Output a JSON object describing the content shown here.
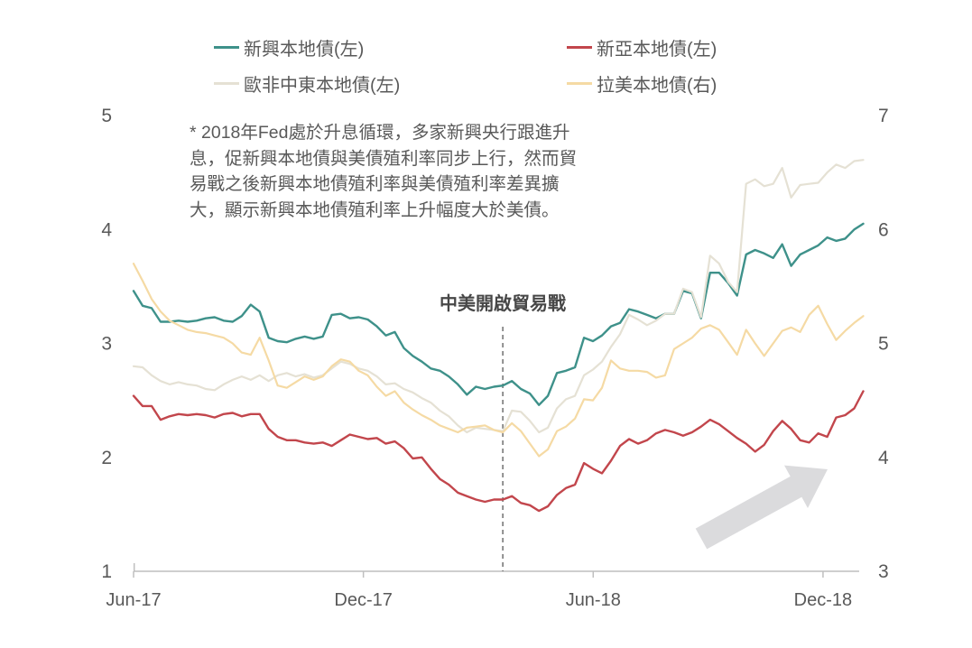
{
  "legend": {
    "items": [
      {
        "label": "新興本地債(左)",
        "color": "#3E918A"
      },
      {
        "label": "新亞本地債(左)",
        "color": "#C2464C"
      },
      {
        "label": "歐非中東本地債(左)",
        "color": "#E5E1D4"
      },
      {
        "label": "拉美本地債(右)",
        "color": "#F5DAA4"
      }
    ]
  },
  "annotation": {
    "lines": [
      "* 2018年Fed處於升息循環，多家新興央行跟進升",
      "息，促新興本地債與美債殖利率同步上行，然而貿",
      "易戰之後新興本地債殖利率與美債殖利率差異擴",
      "大，顯示新興本地債殖利率上升幅度大於美債。"
    ]
  },
  "event_label": "中美開啟貿易戰",
  "chart_data": {
    "type": "line",
    "x_axis": {
      "tick_labels": [
        "Jun-17",
        "Dec-17",
        "Jun-18",
        "Dec-18"
      ],
      "tick_months": [
        0,
        6,
        12,
        18
      ]
    },
    "left_axis": {
      "ticks": [
        1,
        2,
        3,
        4,
        5
      ],
      "range": [
        1,
        5
      ]
    },
    "right_axis": {
      "ticks": [
        3,
        4,
        5,
        6,
        7
      ],
      "range": [
        3,
        7
      ]
    },
    "months_span": 19.05,
    "event_month": 9.64,
    "grid": false,
    "legend_position": "top",
    "series": [
      {
        "name": "新興本地債(左)",
        "axis": "left",
        "color": "#3E918A",
        "values": [
          3.46,
          3.33,
          3.31,
          3.19,
          3.19,
          3.2,
          3.19,
          3.2,
          3.22,
          3.23,
          3.2,
          3.19,
          3.24,
          3.34,
          3.28,
          3.05,
          3.02,
          3.01,
          3.04,
          3.06,
          3.04,
          3.06,
          3.25,
          3.26,
          3.22,
          3.23,
          3.21,
          3.15,
          3.07,
          3.1,
          2.96,
          2.89,
          2.84,
          2.78,
          2.76,
          2.71,
          2.64,
          2.55,
          2.62,
          2.6,
          2.62,
          2.63,
          2.67,
          2.6,
          2.56,
          2.46,
          2.54,
          2.74,
          2.76,
          2.79,
          3.05,
          3.02,
          3.07,
          3.15,
          3.18,
          3.3,
          3.28,
          3.25,
          3.22,
          3.26,
          3.26,
          3.46,
          3.44,
          3.22,
          3.62,
          3.62,
          3.53,
          3.42,
          3.78,
          3.82,
          3.79,
          3.75,
          3.87,
          3.68,
          3.78,
          3.82,
          3.86,
          3.93,
          3.9,
          3.92,
          4.0,
          4.05
        ]
      },
      {
        "name": "新亞本地債(左)",
        "axis": "left",
        "color": "#C2464C",
        "values": [
          2.54,
          2.45,
          2.45,
          2.33,
          2.36,
          2.38,
          2.37,
          2.38,
          2.37,
          2.35,
          2.38,
          2.39,
          2.36,
          2.38,
          2.38,
          2.25,
          2.18,
          2.15,
          2.15,
          2.13,
          2.12,
          2.13,
          2.1,
          2.15,
          2.2,
          2.18,
          2.16,
          2.17,
          2.12,
          2.14,
          2.08,
          1.99,
          2.0,
          1.9,
          1.81,
          1.76,
          1.69,
          1.66,
          1.63,
          1.61,
          1.63,
          1.63,
          1.66,
          1.6,
          1.58,
          1.53,
          1.57,
          1.67,
          1.73,
          1.76,
          1.95,
          1.9,
          1.86,
          1.97,
          2.1,
          2.16,
          2.12,
          2.15,
          2.21,
          2.24,
          2.22,
          2.19,
          2.22,
          2.27,
          2.33,
          2.29,
          2.23,
          2.17,
          2.12,
          2.05,
          2.11,
          2.23,
          2.32,
          2.25,
          2.15,
          2.13,
          2.21,
          2.18,
          2.35,
          2.37,
          2.43,
          2.58
        ]
      },
      {
        "name": "歐非中東本地債(左)",
        "axis": "left",
        "color": "#E5E1D4",
        "values": [
          2.8,
          2.79,
          2.72,
          2.67,
          2.64,
          2.66,
          2.64,
          2.63,
          2.6,
          2.59,
          2.64,
          2.68,
          2.71,
          2.68,
          2.72,
          2.67,
          2.72,
          2.74,
          2.71,
          2.73,
          2.7,
          2.72,
          2.78,
          2.84,
          2.82,
          2.78,
          2.76,
          2.71,
          2.64,
          2.65,
          2.6,
          2.57,
          2.52,
          2.48,
          2.41,
          2.36,
          2.28,
          2.22,
          2.26,
          2.25,
          2.24,
          2.23,
          2.41,
          2.4,
          2.32,
          2.22,
          2.26,
          2.43,
          2.51,
          2.54,
          2.72,
          2.77,
          2.84,
          2.97,
          3.08,
          3.25,
          3.21,
          3.16,
          3.2,
          3.26,
          3.26,
          3.48,
          3.45,
          3.23,
          3.77,
          3.7,
          3.54,
          3.45,
          4.4,
          4.44,
          4.38,
          4.4,
          4.54,
          4.28,
          4.39,
          4.4,
          4.41,
          4.5,
          4.57,
          4.54,
          4.6,
          4.61
        ]
      },
      {
        "name": "拉美本地債(右)",
        "axis": "right",
        "color": "#F5DAA4",
        "values": [
          5.7,
          5.55,
          5.39,
          5.28,
          5.2,
          5.16,
          5.12,
          5.1,
          5.09,
          5.07,
          5.05,
          5.0,
          4.92,
          4.9,
          5.05,
          4.85,
          4.63,
          4.61,
          4.66,
          4.71,
          4.68,
          4.71,
          4.8,
          4.86,
          4.84,
          4.76,
          4.72,
          4.62,
          4.54,
          4.58,
          4.48,
          4.42,
          4.37,
          4.33,
          4.28,
          4.25,
          4.22,
          4.26,
          4.27,
          4.28,
          4.24,
          4.22,
          4.3,
          4.23,
          4.12,
          4.01,
          4.07,
          4.23,
          4.27,
          4.34,
          4.51,
          4.5,
          4.61,
          4.85,
          4.78,
          4.76,
          4.76,
          4.75,
          4.7,
          4.72,
          4.95,
          5.0,
          5.05,
          5.13,
          5.16,
          5.12,
          5.01,
          4.9,
          5.12,
          5.0,
          4.89,
          5.0,
          5.11,
          5.14,
          5.1,
          5.25,
          5.33,
          5.17,
          5.03,
          5.11,
          5.18,
          5.24
        ]
      }
    ]
  }
}
